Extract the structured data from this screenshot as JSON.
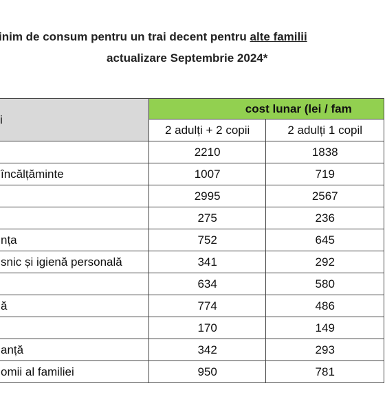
{
  "header": {
    "title_start": "inim de consum pentru un trai decent pentru ",
    "title_underlined": "alte familii",
    "subtitle": "actualizare Septembrie 2024*"
  },
  "table": {
    "group_header": "cost lunar (lei / fam",
    "row_header": "i",
    "columns": [
      "2 adulți + 2 copii",
      "2 adulți 1 copil"
    ],
    "rows": [
      [
        null,
        2210,
        1838
      ],
      [
        "încălțăminte",
        1007,
        719
      ],
      [
        null,
        2995,
        2567
      ],
      [
        null,
        275,
        236
      ],
      [
        "nța",
        752,
        645
      ],
      [
        "snic și igienă personală",
        341,
        292
      ],
      [
        null,
        634,
        580
      ],
      [
        "ă",
        774,
        486
      ],
      [
        null,
        170,
        149
      ],
      [
        "anță",
        342,
        293
      ],
      [
        "omii al familiei",
        950,
        781
      ]
    ]
  }
}
